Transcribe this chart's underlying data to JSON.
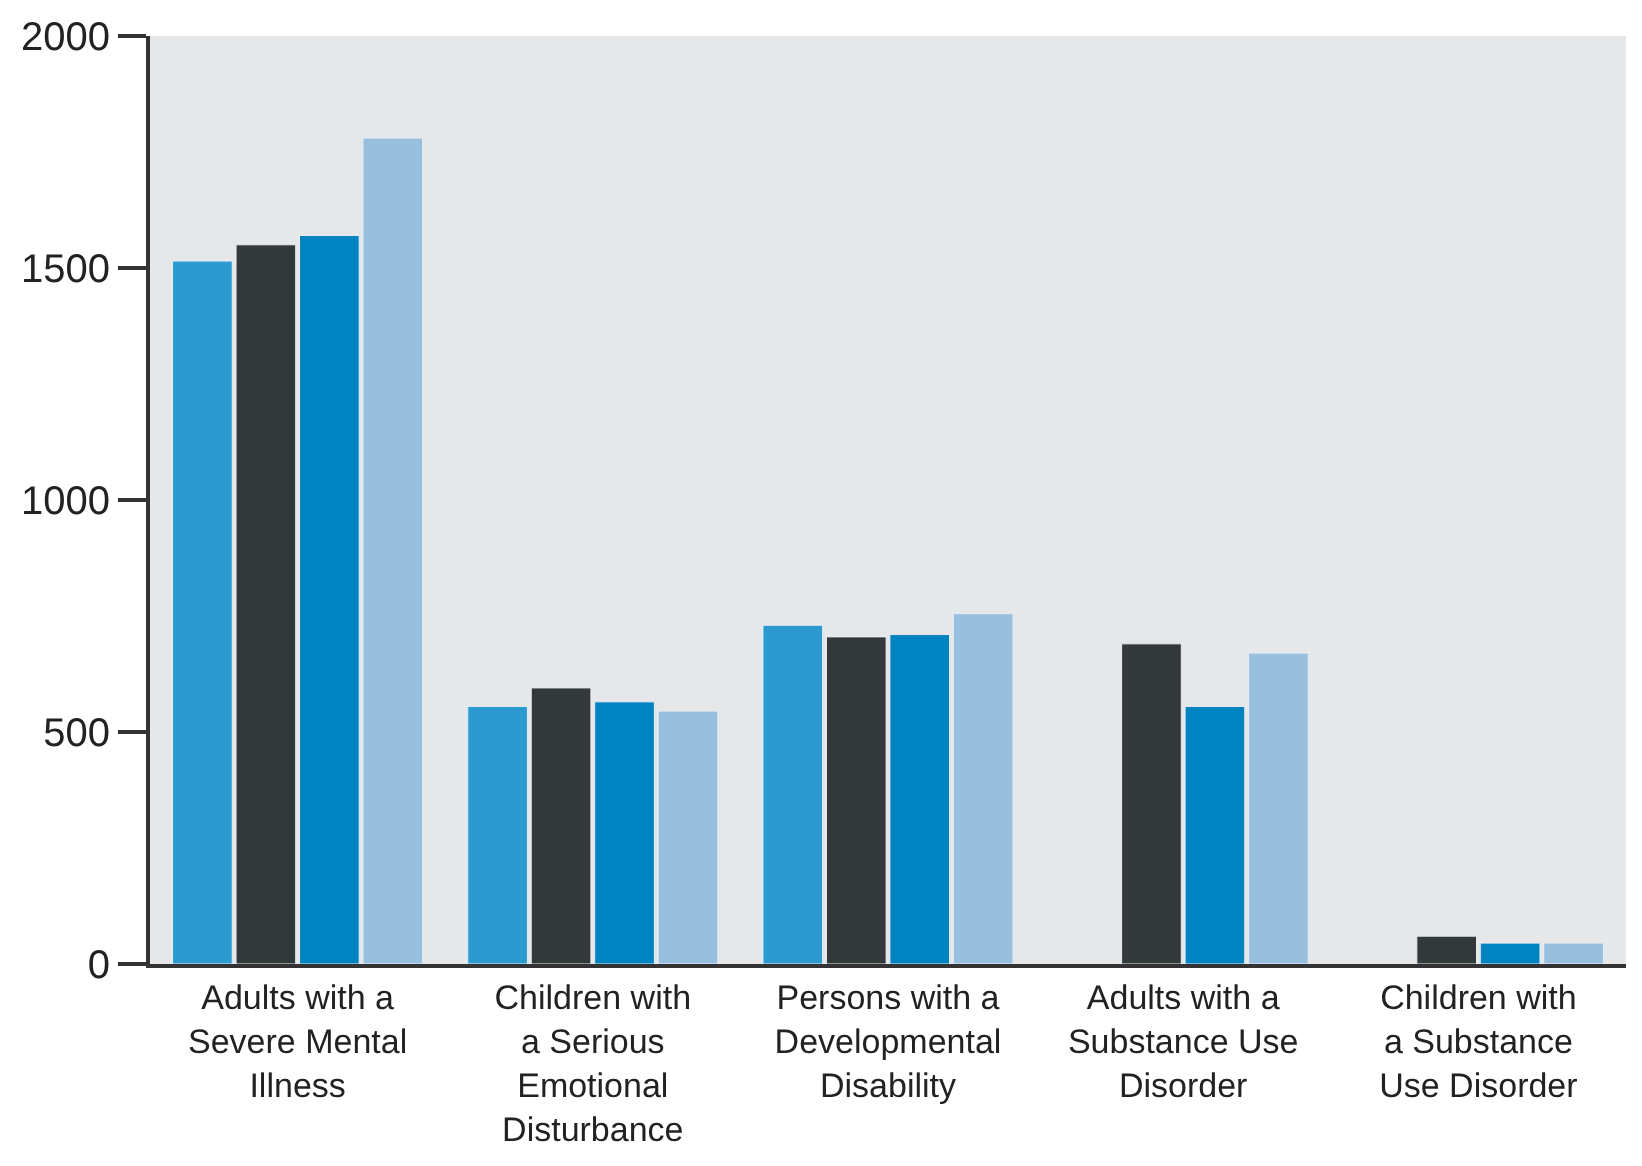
{
  "chart_data": {
    "type": "bar",
    "categories": [
      "Adults with a Severe Mental Illness",
      "Children with a Serious Emotional Disturbance",
      "Persons with a Developmental Disability",
      "Adults with a Substance Use Disorder",
      "Children with a Substance Use Disorder"
    ],
    "series": [
      {
        "color": "#2b9ad0",
        "values": [
          1515,
          555,
          730,
          null,
          null
        ]
      },
      {
        "color": "#333838",
        "values": [
          1550,
          595,
          705,
          690,
          60
        ]
      },
      {
        "color": "#0083c1",
        "values": [
          1570,
          565,
          710,
          555,
          45
        ]
      },
      {
        "color": "#99bfdf",
        "values": [
          1780,
          545,
          755,
          670,
          45
        ]
      }
    ],
    "ylim": [
      0,
      2000
    ],
    "yticks": [
      0,
      500,
      1000,
      1500,
      2000
    ],
    "grid": false,
    "legend": false
  }
}
